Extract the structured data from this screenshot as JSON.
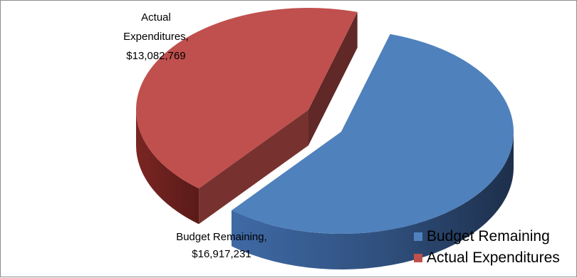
{
  "chart_data": {
    "type": "pie",
    "style": "3d-exploded",
    "title": "",
    "slices": [
      {
        "label": "Budget Remaining",
        "value": 16917231,
        "value_text": "$16,917,231",
        "color": "#4f81bd"
      },
      {
        "label": "Actual Expenditures",
        "value": 13082769,
        "value_text": "$13,082,769",
        "color": "#c0504d"
      }
    ],
    "legend": {
      "position": "bottom-right"
    }
  }
}
